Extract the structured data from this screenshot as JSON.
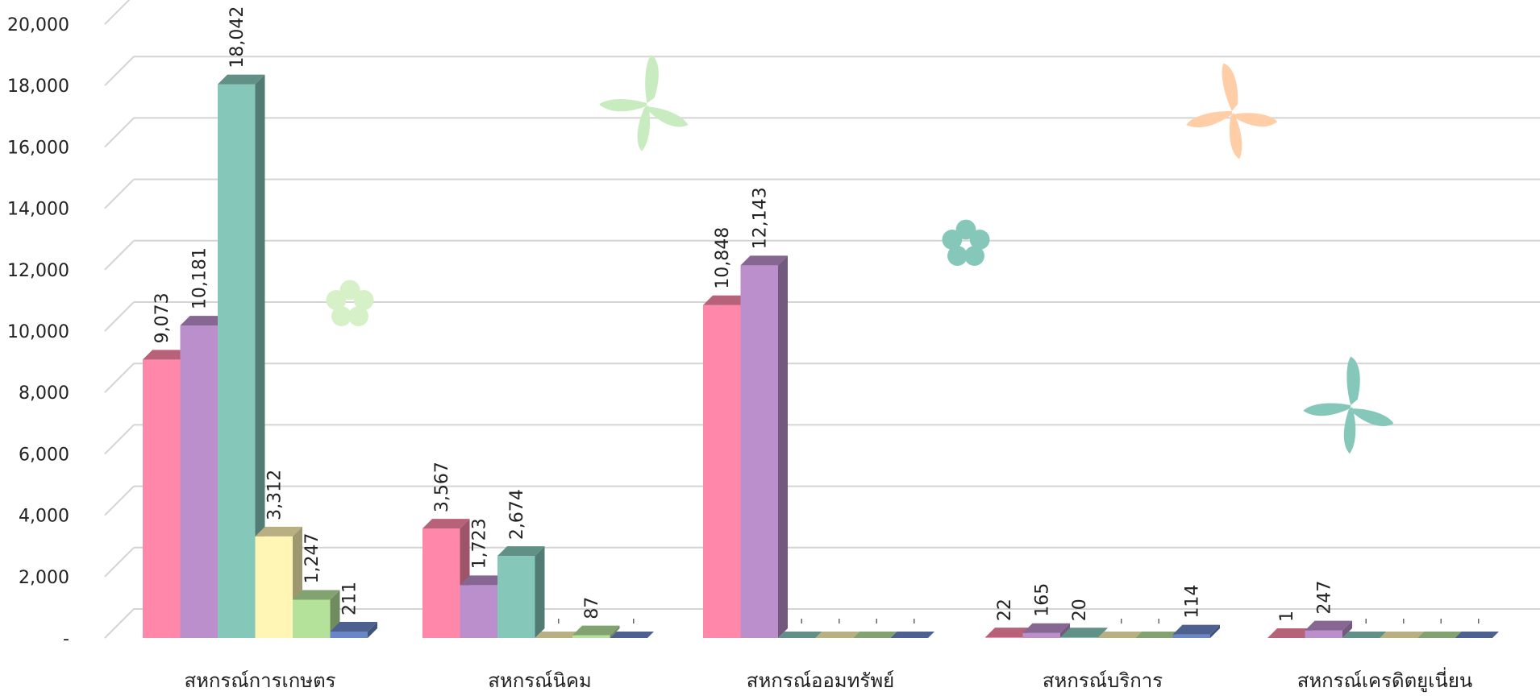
{
  "chart_data": {
    "type": "bar",
    "categories": [
      "สหกรณ์การเกษตร",
      "สหกรณ์นิคม",
      "สหกรณ์ออมทรัพย์",
      "สหกรณ์บริการ",
      "สหกรณ์เครดิตยูเนี่ยน"
    ],
    "y_ticks": [
      "-",
      "2,000",
      "4,000",
      "6,000",
      "8,000",
      "10,000",
      "12,000",
      "14,000",
      "16,000",
      "18,000",
      "20,000"
    ],
    "ylim": [
      0,
      20000
    ],
    "grid": true,
    "series": [
      {
        "values": [
          9073,
          3567,
          10848,
          22,
          1
        ],
        "labels": [
          "9,073",
          "3,567",
          "10,848",
          "22",
          "1"
        ],
        "color": "#FF88AA"
      },
      {
        "values": [
          10181,
          1723,
          12143,
          165,
          247
        ],
        "labels": [
          "10,181",
          "1,723",
          "12,143",
          "165",
          "247"
        ],
        "color": "#BA8FCB"
      },
      {
        "values": [
          18042,
          2674,
          0,
          20,
          0
        ],
        "labels": [
          "18,042",
          "2,674",
          "",
          "20",
          ""
        ],
        "color": "#85C8BA"
      },
      {
        "values": [
          3312,
          0,
          0,
          0,
          0
        ],
        "labels": [
          "3,312",
          "",
          "",
          "",
          ""
        ],
        "color": "#FFF5B5"
      },
      {
        "values": [
          1247,
          87,
          0,
          0,
          0
        ],
        "labels": [
          "1,247",
          "87",
          "",
          "",
          ""
        ],
        "color": "#B5E29A"
      },
      {
        "values": [
          211,
          0,
          0,
          114,
          0
        ],
        "labels": [
          "211",
          "",
          "",
          "114",
          ""
        ],
        "color": "#6B86C6"
      }
    ]
  },
  "decorations": [
    {
      "kind": "butterfly",
      "color": "#C9EBC0"
    },
    {
      "kind": "butterfly",
      "color": "#FFCEA6"
    },
    {
      "kind": "butterfly",
      "color": "#85C8BA"
    },
    {
      "kind": "flower",
      "color": "#D6F0C8"
    },
    {
      "kind": "flower",
      "color": "#85C8BA"
    }
  ]
}
